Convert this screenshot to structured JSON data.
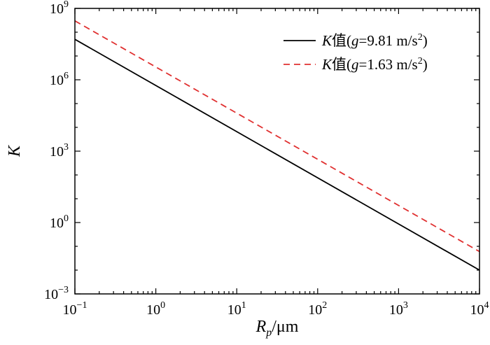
{
  "chart_data": {
    "type": "line",
    "scale": {
      "x": "log",
      "y": "log"
    },
    "xlim": [
      0.1,
      10000
    ],
    "ylim": [
      0.001,
      1000000000
    ],
    "xlabel": {
      "main": "R",
      "sub": "p",
      "unit": "/μm"
    },
    "ylabel": "K",
    "x_ticks": [
      {
        "base": "10",
        "exp": "−1"
      },
      {
        "base": "10",
        "exp": "0"
      },
      {
        "base": "10",
        "exp": "1"
      },
      {
        "base": "10",
        "exp": "2"
      },
      {
        "base": "10",
        "exp": "3"
      },
      {
        "base": "10",
        "exp": "4"
      }
    ],
    "y_ticks": [
      {
        "base": "10",
        "exp": "−3"
      },
      {
        "base": "10",
        "exp": "0"
      },
      {
        "base": "10",
        "exp": "3"
      },
      {
        "base": "10",
        "exp": "6"
      },
      {
        "base": "10",
        "exp": "9"
      }
    ],
    "grid": false,
    "legend_position": "top-right",
    "series": [
      {
        "label": {
          "k": "K",
          "zh": "值(",
          "g": "g",
          "eq": "=9.81 m/s",
          "sup": "2",
          "close": ")"
        },
        "color": "#000000",
        "dash": "solid",
        "x": [
          0.1,
          10000
        ],
        "y": [
          50000000,
          0.01
        ]
      },
      {
        "label": {
          "k": "K",
          "zh": "值(",
          "g": "g",
          "eq": "=1.63 m/s",
          "sup": "2",
          "close": ")"
        },
        "color": "#e03030",
        "dash": "dashed",
        "x": [
          0.1,
          10000
        ],
        "y": [
          300000000,
          0.06
        ]
      }
    ]
  }
}
